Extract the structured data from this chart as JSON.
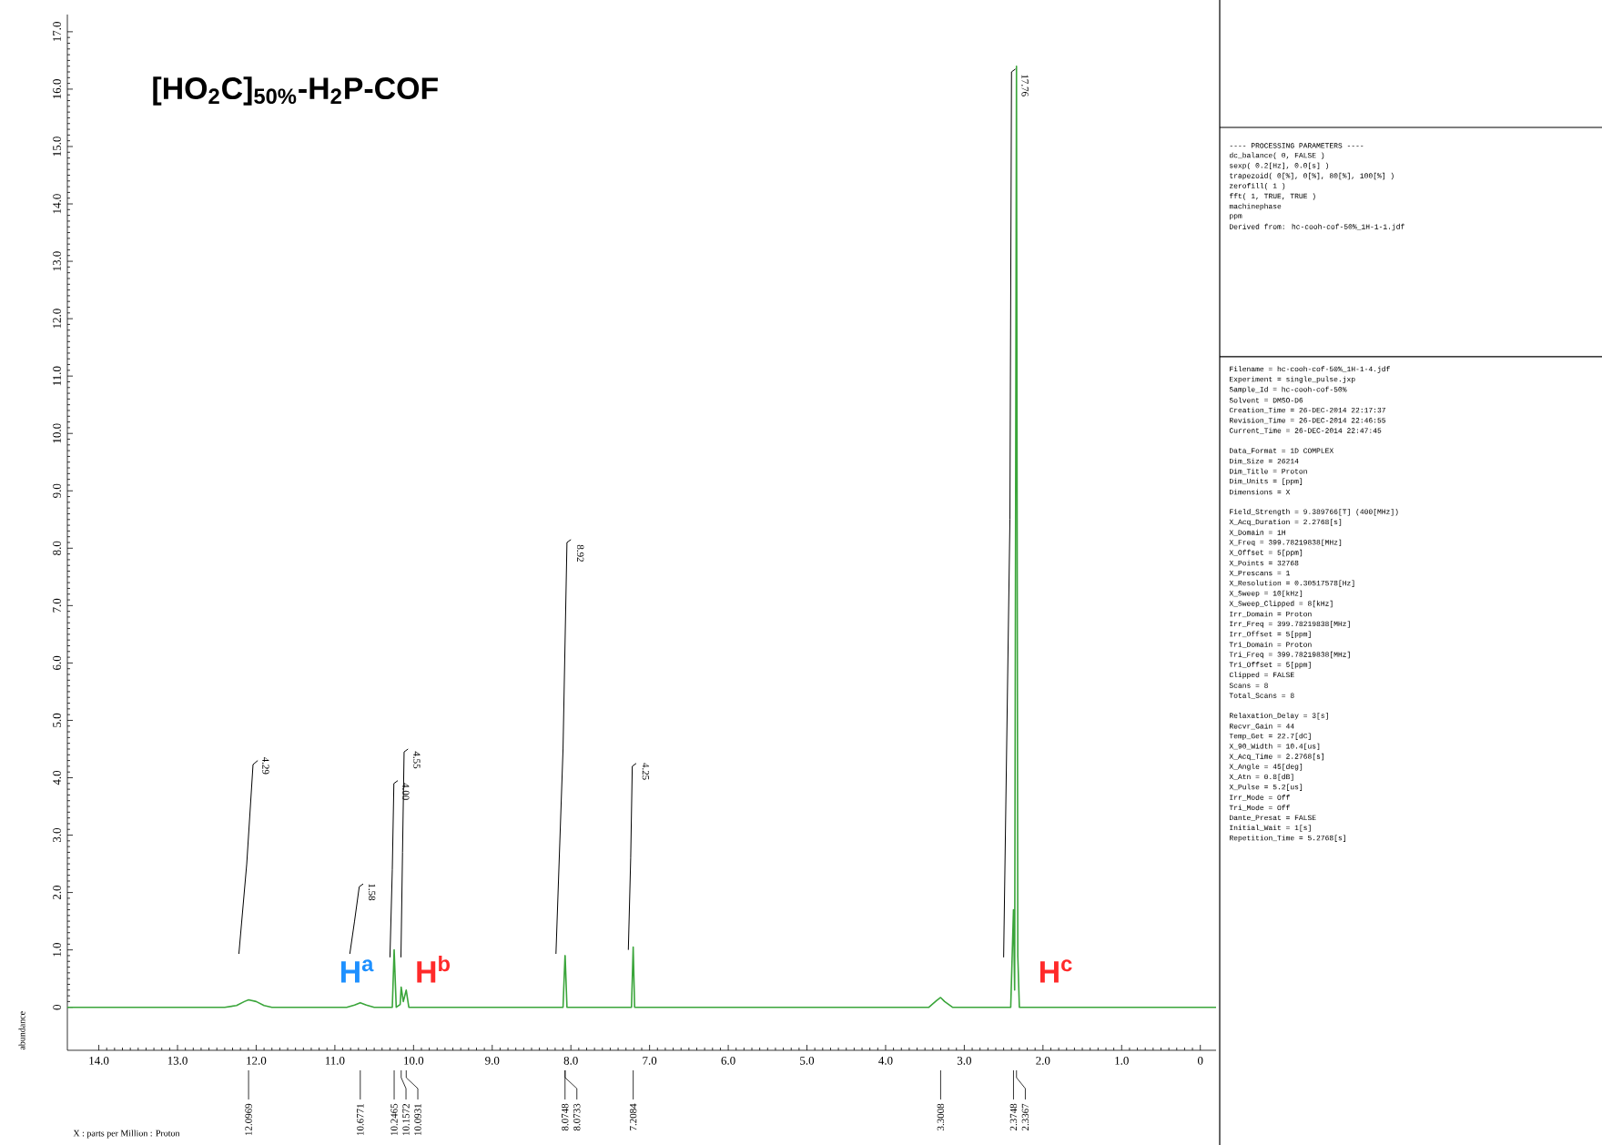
{
  "chart_data": {
    "type": "line",
    "title": "[HO$_{2}$C]$_{50%}$-H$_{2}$P-COF",
    "ylabel": "abundance",
    "xlim": [
      14.4,
      -0.2
    ],
    "ylim": [
      -0.75,
      17.3
    ],
    "xticks": [
      {
        "value": 14,
        "label": "14.0"
      },
      {
        "value": 13,
        "label": "13.0"
      },
      {
        "value": 12,
        "label": "12.0"
      },
      {
        "value": 11,
        "label": "11.0"
      },
      {
        "value": 10,
        "label": "10.0"
      },
      {
        "value": 9,
        "label": "9.0"
      },
      {
        "value": 8,
        "label": "8.0"
      },
      {
        "value": 7,
        "label": "7.0"
      },
      {
        "value": 6,
        "label": "6.0"
      },
      {
        "value": 5,
        "label": "5.0"
      },
      {
        "value": 4,
        "label": "4.0"
      },
      {
        "value": 3,
        "label": "3.0"
      },
      {
        "value": 2,
        "label": "2.0"
      },
      {
        "value": 1,
        "label": "1.0"
      },
      0
    ],
    "yticks": [
      0,
      {
        "value": 1,
        "label": "1.0"
      },
      {
        "value": 2,
        "label": "2.0"
      },
      {
        "value": 3,
        "label": "3.0"
      },
      {
        "value": 4,
        "label": "4.0"
      },
      {
        "value": 5,
        "label": "5.0"
      },
      {
        "value": 6,
        "label": "6.0"
      },
      {
        "value": 7,
        "label": "7.0"
      },
      {
        "value": 8,
        "label": "8.0"
      },
      {
        "value": 9,
        "label": "9.0"
      },
      {
        "value": 10,
        "label": "10.0"
      },
      {
        "value": 11,
        "label": "11.0"
      },
      {
        "value": 12,
        "label": "12.0"
      },
      {
        "value": 13,
        "label": "13.0"
      },
      {
        "value": 14,
        "label": "14.0"
      },
      {
        "value": 15,
        "label": "15.0"
      },
      {
        "value": 16,
        "label": "16.0"
      },
      {
        "value": 17,
        "label": "17.0"
      }
    ],
    "series": [
      {
        "color": "#3aa53a",
        "x": [
          14.4,
          12.4,
          12.25,
          12.15,
          12.0969,
          12.0,
          11.9,
          11.8,
          10.85,
          10.75,
          10.6771,
          10.6,
          10.5,
          10.27,
          10.2465,
          10.22,
          10.17,
          10.1572,
          10.13,
          10.0931,
          10.06,
          8.1,
          8.0748,
          8.074,
          8.0733,
          8.05,
          7.23,
          7.2084,
          7.19,
          3.45,
          3.35,
          3.3008,
          3.25,
          3.15,
          2.41,
          2.3748,
          2.36,
          2.3367,
          2.32,
          2.3,
          -0.2
        ],
        "values": [
          0,
          0,
          0.03,
          0.1,
          0.13,
          0.1,
          0.03,
          0,
          0,
          0.04,
          0.08,
          0.04,
          0,
          0,
          1.0,
          0,
          0.05,
          0.35,
          0.1,
          0.3,
          0,
          0,
          0.9,
          0.85,
          0.9,
          0,
          0,
          1.05,
          0,
          0,
          0.12,
          0.17,
          0.1,
          0,
          0,
          1.7,
          0.3,
          16.4,
          0.9,
          0,
          0
        ]
      },
      {
        "color": "#000000",
        "x": [
          12.22,
          12.12,
          12.04,
          11.98
        ],
        "values": [
          0.93,
          2.5,
          4.23,
          4.3
        ]
      },
      {
        "color": "#000000",
        "x": [
          10.81,
          10.75,
          10.69,
          10.64
        ],
        "values": [
          0.93,
          1.5,
          2.1,
          2.15
        ]
      },
      {
        "color": "#000000",
        "x": [
          10.3,
          10.27,
          10.25,
          10.2
        ],
        "values": [
          0.87,
          2.4,
          3.9,
          3.95
        ]
      },
      {
        "color": "#000000",
        "x": [
          10.16,
          10.14,
          10.12,
          10.07
        ],
        "values": [
          0.87,
          2.7,
          4.45,
          4.5
        ]
      },
      {
        "color": "#000000",
        "x": [
          8.19,
          8.1,
          8.05,
          8.0
        ],
        "values": [
          0.93,
          4.5,
          8.1,
          8.15
        ]
      },
      {
        "color": "#000000",
        "x": [
          7.27,
          7.24,
          7.22,
          7.17
        ],
        "values": [
          1.0,
          2.6,
          4.2,
          4.25
        ]
      },
      {
        "color": "#000000",
        "x": [
          2.5,
          2.42,
          2.4,
          2.35
        ],
        "values": [
          0.87,
          8.5,
          16.3,
          16.35
        ]
      }
    ],
    "annotations": [
      "H$^{a}$",
      "H$^{b}$",
      "H$^{c}$",
      "X : parts per Million : Proton",
      {
        "text": "4.29",
        "x": 11.95,
        "y": 4.4
      },
      {
        "text": "1.58",
        "x": 10.6,
        "y": 2.2
      },
      {
        "text": "4.00",
        "x": 10.17,
        "y": 3.95
      },
      {
        "text": "4.55",
        "x": 10.03,
        "y": 4.5
      },
      {
        "text": "8.92",
        "x": 7.95,
        "y": 8.1
      },
      {
        "text": "4.25",
        "x": 7.12,
        "y": 4.3
      },
      {
        "text": "17.76",
        "x": 2.3,
        "y": 16.3
      },
      {
        "text": "12.0969",
        "x": 12.0969
      },
      {
        "text": "10.6771",
        "x": 10.6771
      },
      {
        "text": "10.2465",
        "x": 10.2465
      },
      {
        "text": "10.1572",
        "x": 10.1572
      },
      {
        "text": "10.0931",
        "x": 10.0931
      },
      {
        "text": "8.0748",
        "x": 8.0748
      },
      {
        "text": "8.0733",
        "x": 8.0733
      },
      {
        "text": "7.2084",
        "x": 7.2084
      },
      {
        "text": "3.3008",
        "x": 3.3008
      },
      {
        "text": "2.3748",
        "x": 2.3748
      },
      {
        "text": "2.3367",
        "x": 2.3367
      },
      "---- PROCESSING PARAMETERS ----",
      "dc_balance( 0, FALSE )",
      "sexp( 0.2[Hz], 0.0[s] )",
      "trapezoid( 0[%], 0[%], 80[%], 100[%] )",
      "zerofill( 1 )",
      "fft( 1, TRUE, TRUE )",
      "machinephase",
      "ppm",
      "Derived from: hc-cooh-cof-50%_1H-1-1.jdf",
      "Filename = hc-cooh-cof-50%_1H-1-4.jdf",
      "Experiment = single_pulse.jxp",
      "Sample_Id = hc-cooh-cof-50%",
      "Solvent = DMSO-D6",
      "Creation_Time = 26-DEC-2014 22:17:37",
      "Revision_Time = 26-DEC-2014 22:46:55",
      "Current_Time = 26-DEC-2014 22:47:45",
      "Data_Format = 1D COMPLEX",
      "Dim_Size = 26214",
      "Dim_Title = Proton",
      "Dim_Units = [ppm]",
      "Dimensions = X",
      "Field_Strength = 9.389766[T] (400[MHz])",
      "X_Acq_Duration = 2.2768[s]",
      "X_Domain = 1H",
      "X_Freq = 399.78219838[MHz]",
      "X_Offset = 5[ppm]",
      "X_Points = 32768",
      "X_Prescans = 1",
      "X_Resolution = 0.30517578[Hz]",
      "X_Sweep = 10[kHz]",
      "X_Sweep_Clipped = 8[kHz]",
      "Irr_Domain = Proton",
      "Irr_Freq = 399.78219838[MHz]",
      "Irr_Offset = 5[ppm]",
      "Tri_Domain = Proton",
      "Tri_Freq = 399.78219838[MHz]",
      "Tri_Offset = 5[ppm]",
      "Clipped = FALSE",
      "Scans = 8",
      "Total_Scans = 8",
      "Relaxation_Delay = 3[s]",
      "Recvr_Gain = 44",
      "Temp_Get = 22.7[dC]",
      "X_90_Width = 10.4[us]",
      "X_Acq_Time = 2.2768[s]",
      "X_Angle = 45[deg]",
      "X_Atn = 0.8[dB]",
      "X_Pulse = 5.2[us]",
      "Irr_Mode = Off",
      "Tri_Mode = Off",
      "Dante_Presat = FALSE",
      "Initial_Wait = 1[s]",
      "Repetition_Time = 5.2768[s]"
    ]
  }
}
